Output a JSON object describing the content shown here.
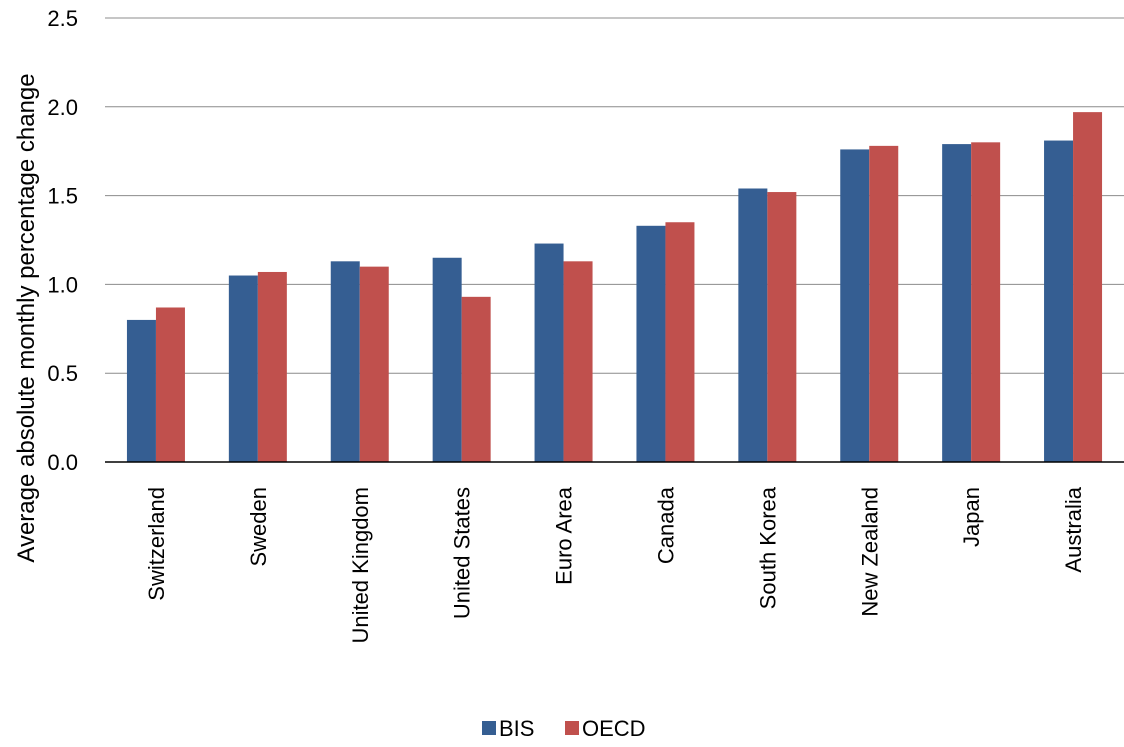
{
  "chart_data": {
    "type": "bar",
    "title": "",
    "xlabel": "",
    "ylabel": "Average absolute monthly percentage change",
    "ylim": [
      0,
      2.5
    ],
    "yticks": [
      "0.0",
      "0.5",
      "1.0",
      "1.5",
      "2.0",
      "2.5"
    ],
    "ytick_values": [
      0,
      0.5,
      1.0,
      1.5,
      2.0,
      2.5
    ],
    "grid": "horizontal",
    "legend_position": "bottom-center",
    "categories": [
      "Switzerland",
      "Sweden",
      "United Kingdom",
      "United States",
      "Euro Area",
      "Canada",
      "South Korea",
      "New Zealand",
      "Japan",
      "Australia"
    ],
    "series": [
      {
        "name": "BIS",
        "color": "#355e92",
        "values": [
          0.8,
          1.05,
          1.13,
          1.15,
          1.23,
          1.33,
          1.54,
          1.76,
          1.79,
          1.81
        ]
      },
      {
        "name": "OECD",
        "color": "#c0504d",
        "values": [
          0.87,
          1.07,
          1.1,
          0.93,
          1.13,
          1.35,
          1.52,
          1.78,
          1.8,
          1.97
        ]
      }
    ]
  }
}
